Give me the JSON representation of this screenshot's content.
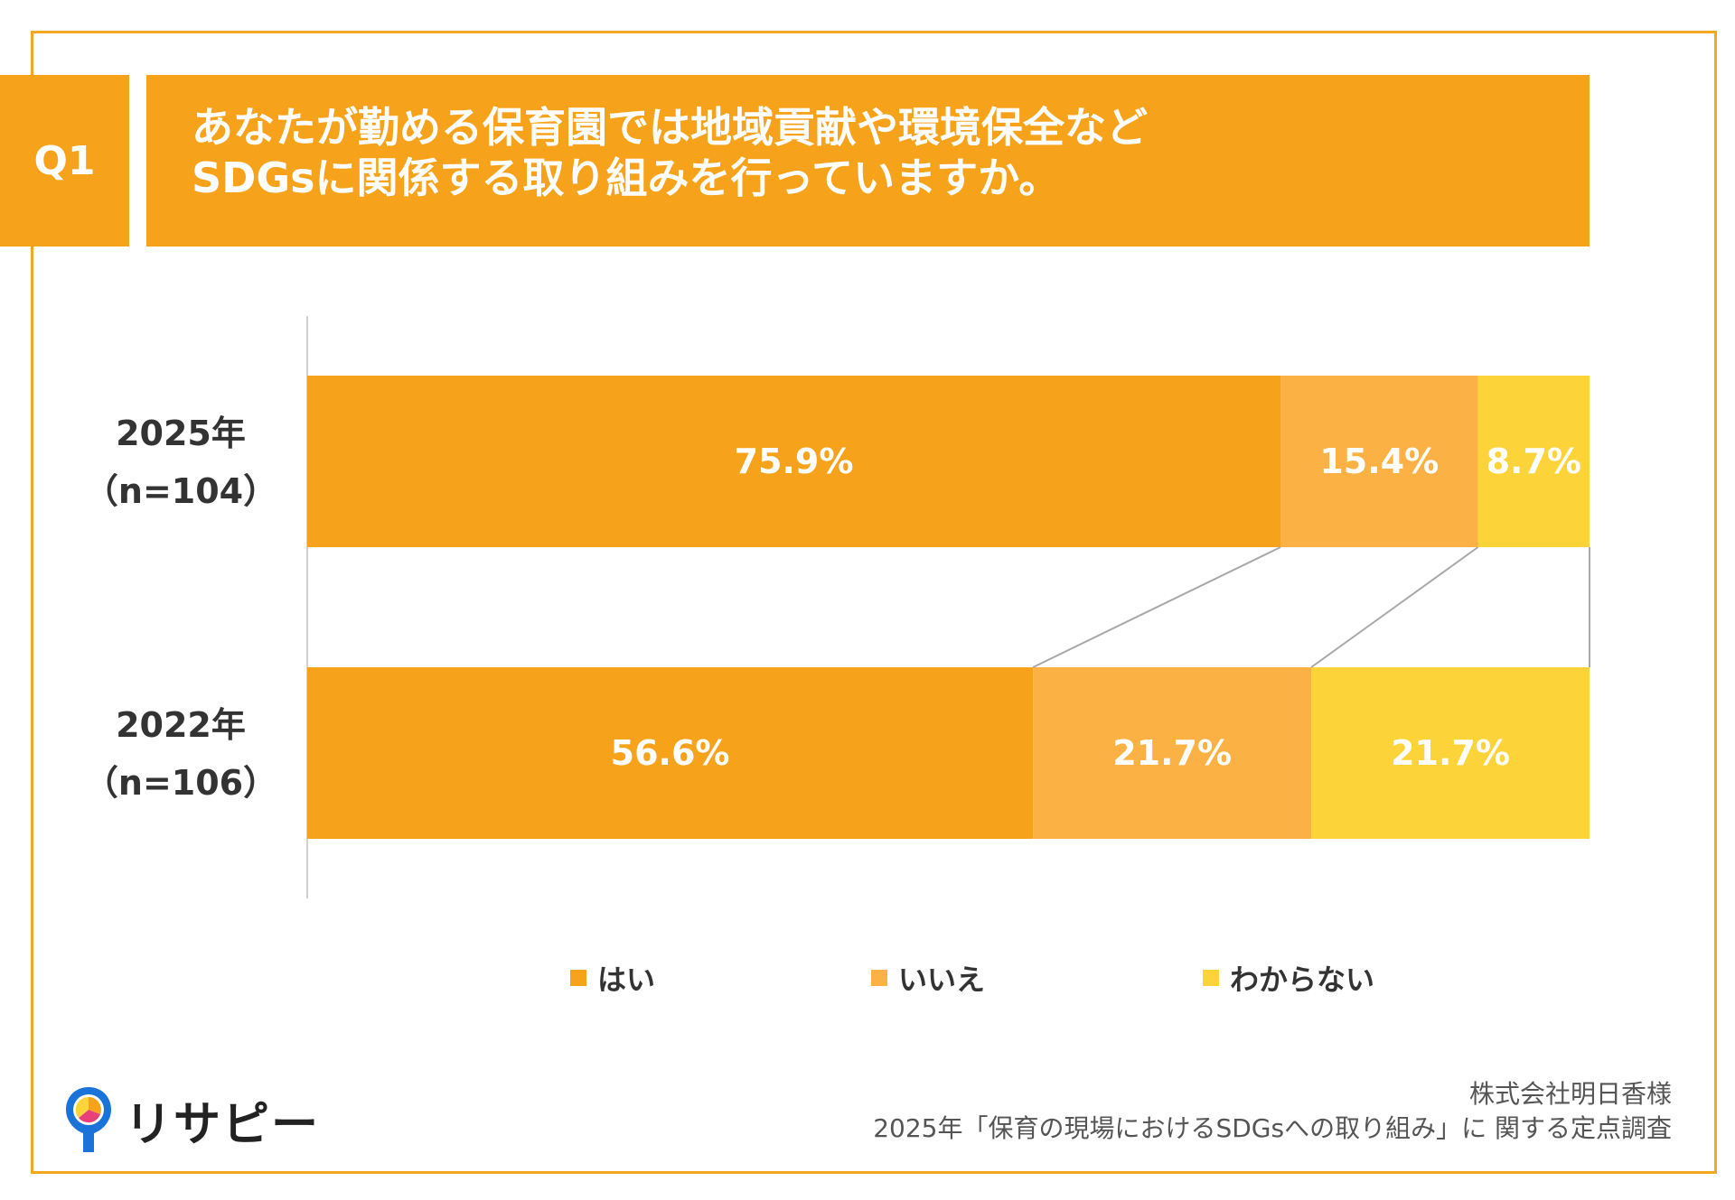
{
  "question": {
    "label": "Q1",
    "title_lines": [
      "あなたが勤める保育園では地域貢献や環境保全など",
      "SDGsに関係する取り組みを行っていますか。"
    ]
  },
  "colors": {
    "accent": "#f7a21b",
    "frame": "#f5a623",
    "hai": "#f7a21b",
    "iie": "#fcb144",
    "wakaranai": "#fdd33a"
  },
  "chart_data": {
    "type": "bar",
    "orientation": "horizontal",
    "stacked": true,
    "normalized_percent": true,
    "categories": [
      {
        "year": "2025年",
        "n": "（n=104）"
      },
      {
        "year": "2022年",
        "n": "（n=106）"
      }
    ],
    "series": [
      {
        "name": "はい",
        "values": [
          75.9,
          56.6
        ],
        "labels": [
          "75.9%",
          "56.6%"
        ],
        "color": "#f7a21b"
      },
      {
        "name": "いいえ",
        "values": [
          15.4,
          21.7
        ],
        "labels": [
          "15.4%",
          "21.7%"
        ],
        "color": "#fcb144"
      },
      {
        "name": "わからない",
        "values": [
          8.7,
          21.7
        ],
        "labels": [
          "8.7%",
          "21.7%"
        ],
        "color": "#fdd33a"
      }
    ],
    "xlim": [
      0,
      100
    ],
    "legend_position": "bottom",
    "connector_lines": true,
    "grid": false
  },
  "logo": {
    "text": "リサピー"
  },
  "footer": {
    "line1": "株式会社明日香様",
    "line2": "2025年「保育の現場におけるSDGsへの取り組み」に 関する定点調査"
  }
}
